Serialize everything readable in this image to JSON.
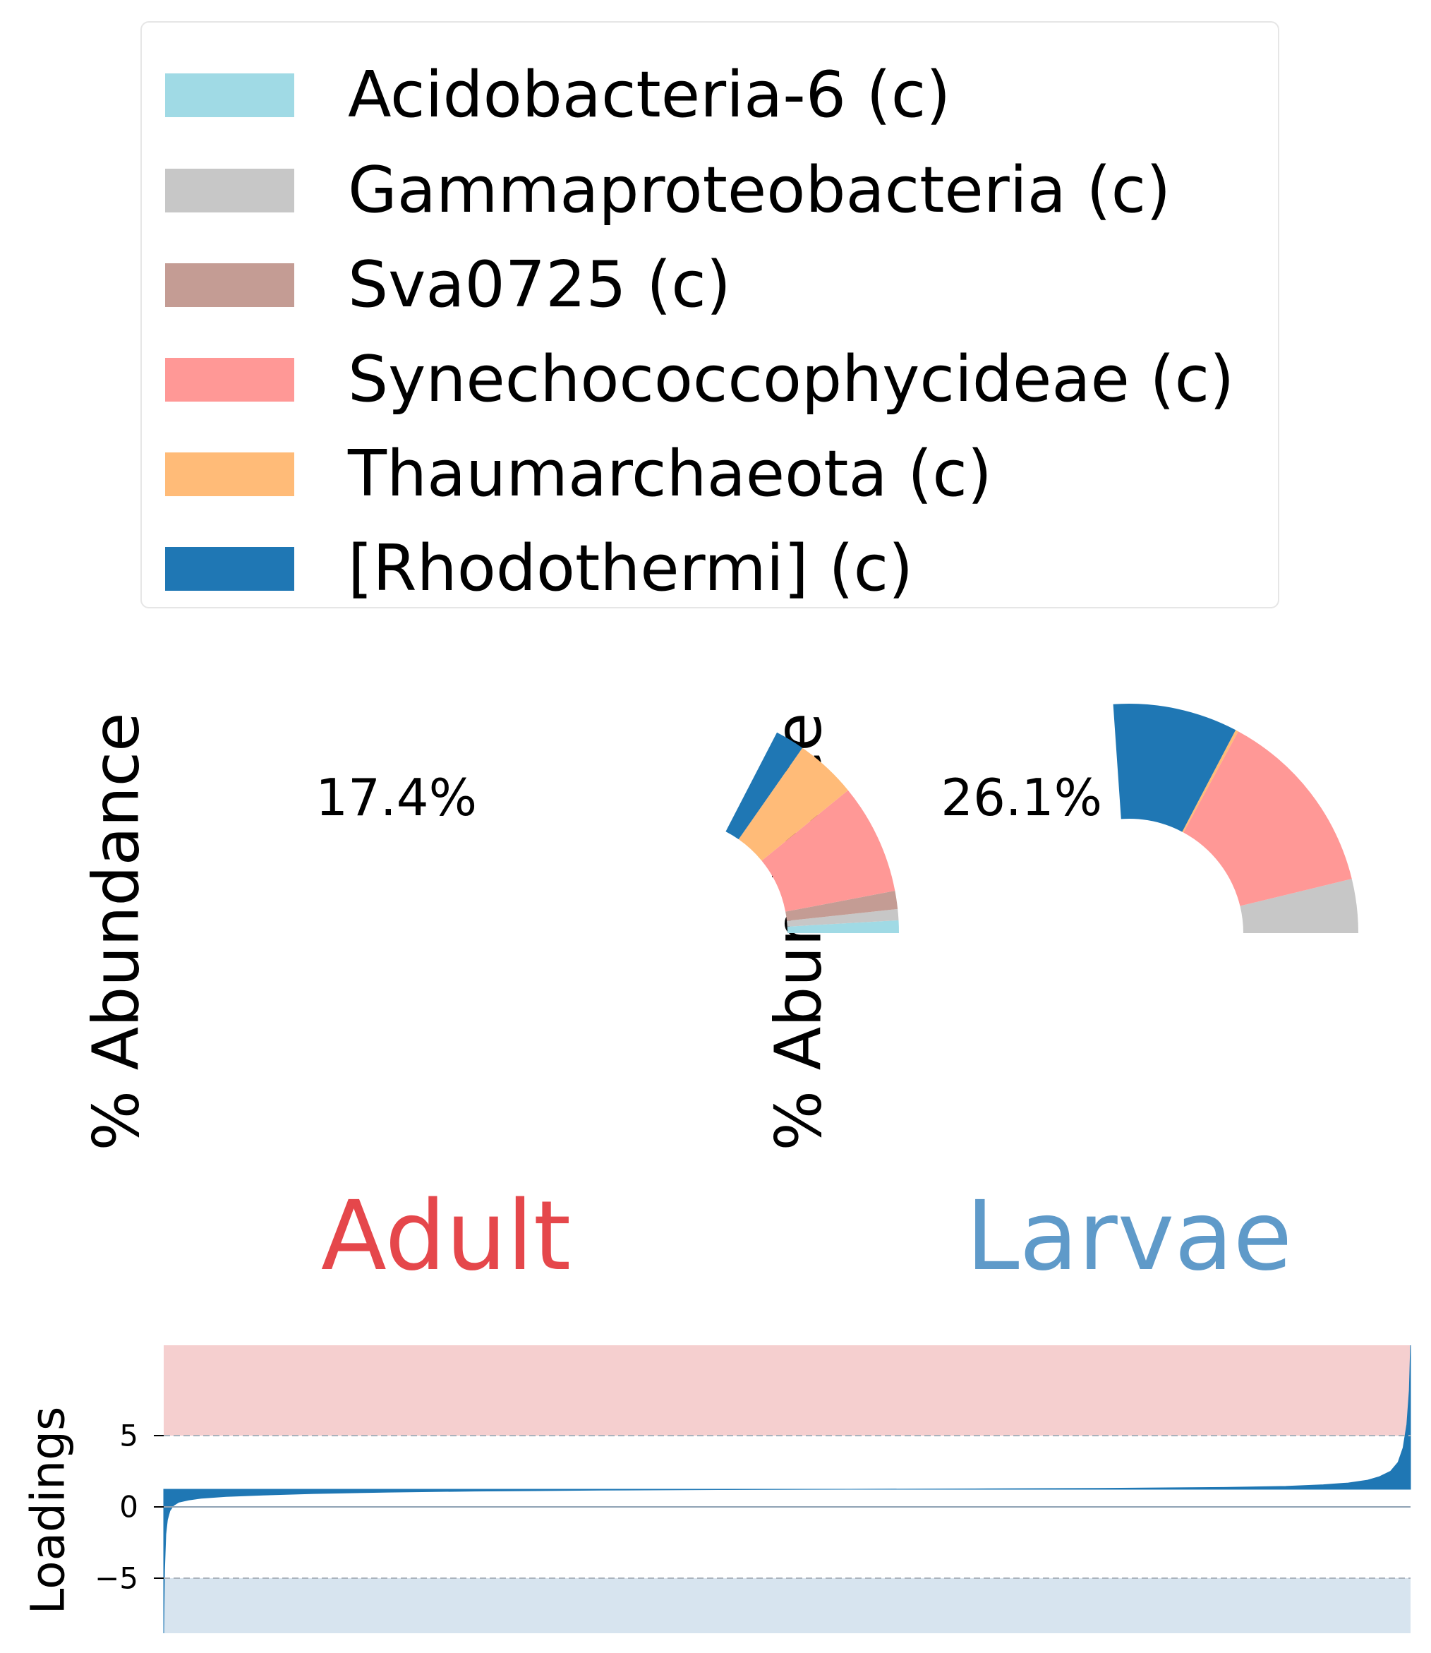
{
  "chart_data": [
    {
      "type": "pie",
      "ylabel": "% Abundance",
      "total_label": "17.4%",
      "group_label": "Adult",
      "group_color": "#e5474b",
      "slices": [
        {
          "name": "Acidobacteria-6 (c)",
          "value": 0.9,
          "color": "#a0dae5"
        },
        {
          "name": "Gammaproteobacteria (c)",
          "value": 0.8,
          "color": "#c7c7c7"
        },
        {
          "name": "Sva0725 (c)",
          "value": 1.3,
          "color": "#c49c94"
        },
        {
          "name": "Synechococcophycideae (c)",
          "value": 7.9,
          "color": "#ff9896"
        },
        {
          "name": "Thaumarchaeota (c)",
          "value": 4.4,
          "color": "#ffbb78"
        },
        {
          "name": "[Rhodothermi] (c)",
          "value": 2.1,
          "color": "#1f77b4"
        }
      ]
    },
    {
      "type": "pie",
      "ylabel": "% Abundance",
      "total_label": "26.1%",
      "group_label": "Larvae",
      "group_color": "#5f9ac9",
      "slices": [
        {
          "name": "Acidobacteria-6 (c)",
          "value": 0.0,
          "color": "#a0dae5"
        },
        {
          "name": "Gammaproteobacteria (c)",
          "value": 3.8,
          "color": "#c7c7c7"
        },
        {
          "name": "Sva0725 (c)",
          "value": 0.0,
          "color": "#c49c94"
        },
        {
          "name": "Synechococcophycideae (c)",
          "value": 13.3,
          "color": "#ff9896"
        },
        {
          "name": "Thaumarchaeota (c)",
          "value": 0.2,
          "color": "#ffbb78"
        },
        {
          "name": "[Rhodothermi] (c)",
          "value": 8.8,
          "color": "#1f77b4"
        }
      ]
    },
    {
      "type": "area",
      "ylabel": "Loadings",
      "ylim": [
        -8,
        8
      ],
      "yticks": [
        {
          "value": 5,
          "label": "5"
        },
        {
          "value": 0,
          "label": "0"
        },
        {
          "value": -5,
          "label": "−5"
        }
      ],
      "thresholds": [
        5,
        -5
      ],
      "upper_band_color": "#f5cfcf",
      "lower_band_color": "#d7e4ef",
      "fill_color": "#1f77b4",
      "profile": [
        [
          0.0,
          -8.0
        ],
        [
          0.0007,
          -4.5
        ],
        [
          0.0017,
          -2.5
        ],
        [
          0.003,
          -1.7
        ],
        [
          0.005,
          -1.2
        ],
        [
          0.008,
          -0.9
        ],
        [
          0.012,
          -0.72
        ],
        [
          0.02,
          -0.6
        ],
        [
          0.03,
          -0.5
        ],
        [
          0.05,
          -0.4
        ],
        [
          0.08,
          -0.32
        ],
        [
          0.12,
          -0.24
        ],
        [
          0.18,
          -0.16
        ],
        [
          0.25,
          -0.1
        ],
        [
          0.35,
          -0.05
        ],
        [
          0.45,
          -0.02
        ],
        [
          0.55,
          0.0
        ],
        [
          0.65,
          0.02
        ],
        [
          0.75,
          0.05
        ],
        [
          0.85,
          0.1
        ],
        [
          0.9,
          0.16
        ],
        [
          0.93,
          0.25
        ],
        [
          0.95,
          0.35
        ],
        [
          0.965,
          0.5
        ],
        [
          0.975,
          0.7
        ],
        [
          0.984,
          1.0
        ],
        [
          0.99,
          1.5
        ],
        [
          0.994,
          2.3
        ],
        [
          0.997,
          3.6
        ],
        [
          0.999,
          5.5
        ],
        [
          1.0,
          8.0
        ]
      ]
    }
  ]
}
